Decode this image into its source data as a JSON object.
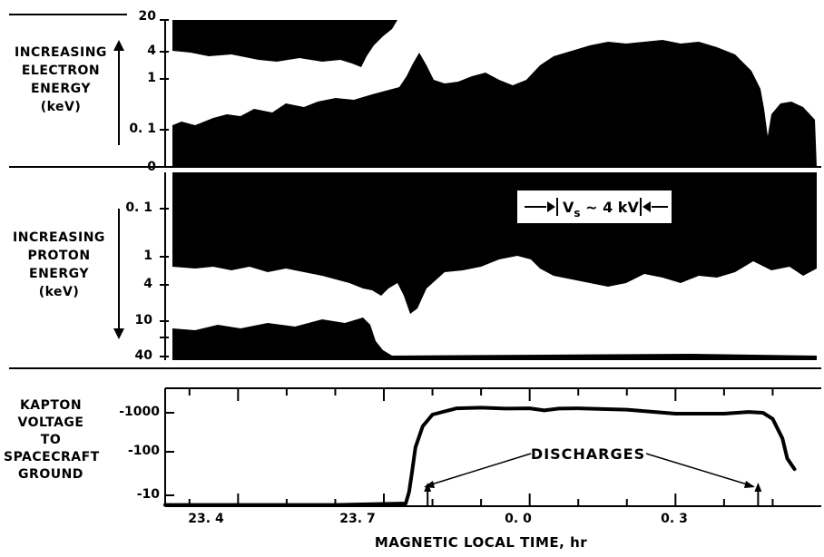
{
  "chart_data": [
    {
      "type": "heatmap",
      "panel": "electron spectrogram",
      "ylabel": [
        "INCREASING",
        "ELECTRON",
        "ENERGY",
        "(keV)"
      ],
      "yticks": [
        "20",
        "4",
        "1",
        "0. 1",
        "0"
      ],
      "ytick_values": [
        20,
        4,
        1,
        0.1,
        0
      ]
    },
    {
      "type": "heatmap",
      "panel": "proton spectrogram",
      "ylabel": [
        "INCREASING",
        "PROTON",
        "ENERGY",
        "(keV)"
      ],
      "yticks": [
        "0. 1",
        "1",
        "4",
        "10",
        "40"
      ],
      "ytick_values": [
        0.1,
        1,
        4,
        10,
        40
      ],
      "annotation": {
        "prefix": "V",
        "subscript": "s",
        "suffix": " ~ 4 kV"
      }
    },
    {
      "type": "line",
      "panel": "kapton voltage",
      "ylabel": [
        "KAPTON",
        "VOLTAGE",
        "TO",
        "SPACECRAFT",
        "GROUND"
      ],
      "yticks": [
        "-1000",
        "-100",
        "-10"
      ],
      "ytick_values": [
        -1000,
        -100,
        -10
      ],
      "yscale": "log",
      "xlabel": "MAGNETIC LOCAL TIME, hr",
      "xticks": [
        "23. 4",
        "23. 7",
        "0. 0",
        "0. 3"
      ],
      "xtick_values": [
        23.4,
        23.7,
        24.0,
        24.3
      ],
      "xlim": [
        23.25,
        24.6
      ],
      "annotation": "DISCHARGES",
      "discharge_times": [
        23.79,
        24.47
      ],
      "series": [
        {
          "x": [
            23.25,
            23.4,
            23.6,
            23.745,
            23.752,
            23.758,
            23.765,
            23.78,
            23.8,
            23.85,
            23.9,
            23.95,
            24.0,
            24.03,
            24.06,
            24.1,
            24.2,
            24.3,
            24.4,
            24.45,
            24.48,
            24.5,
            24.52,
            24.53,
            24.545
          ],
          "y": [
            -6,
            -6,
            -6,
            -6.5,
            -12,
            -35,
            -130,
            -450,
            -900,
            -1300,
            -1350,
            -1280,
            -1300,
            -1150,
            -1280,
            -1300,
            -1200,
            -950,
            -950,
            -1050,
            -1000,
            -700,
            -220,
            -70,
            -40
          ]
        }
      ]
    }
  ]
}
